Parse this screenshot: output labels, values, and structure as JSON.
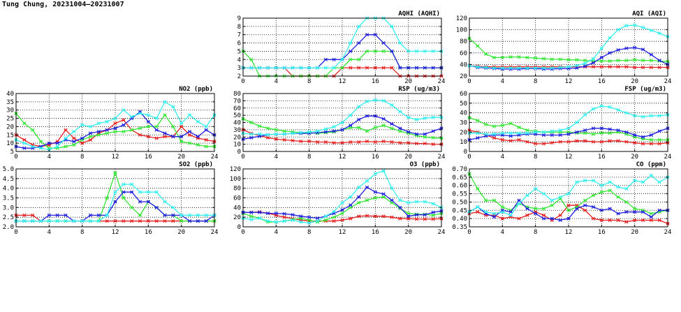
{
  "title": "Tung Chung, 20231004–20231007",
  "colors": {
    "red": "#e81f1f",
    "green": "#33e633",
    "blue": "#1f1fe0",
    "cyan": "#33f0f0",
    "grid": "#000000"
  },
  "xticks": [
    "0",
    "4",
    "8",
    "12",
    "16",
    "20",
    "24"
  ],
  "chart_data": [
    {
      "id": "aqhi",
      "type": "line",
      "title": "AQHI (AQHI)",
      "xlim": [
        0,
        24
      ],
      "ylim": [
        2,
        9
      ],
      "yticks": [
        "2",
        "3",
        "4",
        "5",
        "6",
        "7",
        "8",
        "9"
      ],
      "series": [
        {
          "color": "red",
          "values": [
            3,
            3,
            3,
            3,
            3,
            3,
            2,
            2,
            2,
            2,
            2,
            2,
            3,
            3,
            3,
            3,
            3,
            3,
            3,
            2,
            2,
            2,
            2,
            2,
            2
          ]
        },
        {
          "color": "green",
          "values": [
            5,
            4,
            2,
            2,
            2,
            2,
            2,
            2,
            2,
            2,
            2,
            3,
            3,
            4,
            4,
            5,
            5,
            5,
            5,
            3,
            3,
            3,
            3,
            3,
            3
          ]
        },
        {
          "color": "blue",
          "values": [
            3,
            3,
            3,
            3,
            3,
            3,
            3,
            3,
            3,
            3,
            4,
            4,
            4,
            5,
            6,
            7,
            7,
            6,
            5,
            3,
            3,
            3,
            3,
            3,
            3
          ]
        },
        {
          "color": "cyan",
          "values": [
            3,
            3,
            3,
            3,
            3,
            3,
            3,
            3,
            3,
            3,
            3,
            3,
            4,
            6,
            8,
            9,
            9,
            9,
            8,
            6,
            5,
            5,
            5,
            5,
            5
          ]
        }
      ]
    },
    {
      "id": "aqi",
      "type": "line",
      "title": "AQI (AQI)",
      "xlim": [
        0,
        24
      ],
      "ylim": [
        20,
        120
      ],
      "yticks": [
        "20",
        "40",
        "60",
        "80",
        "100",
        "120"
      ],
      "series": [
        {
          "color": "red",
          "values": [
            38,
            37,
            36,
            36,
            36,
            36,
            36,
            36,
            36,
            36,
            36,
            36,
            36,
            36,
            36,
            36,
            36,
            36,
            36,
            36,
            35,
            35,
            35,
            35,
            35
          ]
        },
        {
          "color": "green",
          "values": [
            85,
            72,
            58,
            52,
            52,
            53,
            53,
            52,
            51,
            50,
            49,
            49,
            48,
            48,
            47,
            46,
            46,
            46,
            47,
            47,
            48,
            47,
            47,
            46,
            45
          ]
        },
        {
          "color": "blue",
          "values": [
            38,
            35,
            34,
            33,
            32,
            32,
            32,
            33,
            33,
            32,
            32,
            33,
            33,
            34,
            37,
            43,
            52,
            60,
            65,
            68,
            69,
            66,
            57,
            47,
            40
          ]
        },
        {
          "color": "cyan",
          "values": [
            38,
            36,
            35,
            34,
            34,
            34,
            34,
            34,
            34,
            34,
            34,
            35,
            36,
            38,
            42,
            50,
            68,
            86,
            100,
            107,
            108,
            104,
            99,
            94,
            88
          ]
        }
      ]
    },
    {
      "id": "no2",
      "type": "line",
      "title": "NO2 (ppb)",
      "xlim": [
        0,
        24
      ],
      "ylim": [
        5,
        40
      ],
      "yticks": [
        "5",
        "10",
        "15",
        "20",
        "25",
        "30",
        "35",
        "40"
      ],
      "series": [
        {
          "color": "red",
          "values": [
            15,
            12,
            9,
            8,
            9,
            11,
            18,
            13,
            10,
            12,
            16,
            18,
            22,
            24,
            18,
            15,
            14,
            13,
            14,
            14,
            20,
            15,
            13,
            12,
            11
          ]
        },
        {
          "color": "green",
          "values": [
            28,
            22,
            18,
            11,
            7,
            7,
            8,
            9,
            12,
            14,
            15,
            16,
            17,
            17,
            18,
            19,
            20,
            20,
            27,
            20,
            11,
            10,
            9,
            8,
            8
          ]
        },
        {
          "color": "blue",
          "values": [
            8,
            7,
            7,
            8,
            10,
            10,
            12,
            11,
            13,
            16,
            17,
            18,
            19,
            21,
            25,
            29,
            23,
            18,
            16,
            14,
            14,
            17,
            14,
            18,
            15
          ]
        },
        {
          "color": "cyan",
          "values": [
            12,
            10,
            8,
            7,
            6,
            8,
            13,
            17,
            21,
            20,
            22,
            23,
            25,
            30,
            26,
            28,
            27,
            25,
            35,
            32,
            22,
            27,
            23,
            20,
            27
          ]
        }
      ]
    },
    {
      "id": "rsp",
      "type": "line",
      "title": "RSP (ug/m3)",
      "xlim": [
        0,
        24
      ],
      "ylim": [
        0,
        80
      ],
      "yticks": [
        "0",
        "10",
        "20",
        "30",
        "40",
        "50",
        "60",
        "70",
        "80"
      ],
      "series": [
        {
          "color": "red",
          "values": [
            30,
            25,
            22,
            19,
            17,
            16,
            15,
            14,
            14,
            13,
            13,
            12,
            12,
            13,
            13,
            14,
            13,
            14,
            13,
            12,
            12,
            11,
            11,
            10,
            10
          ]
        },
        {
          "color": "green",
          "values": [
            45,
            40,
            35,
            32,
            30,
            28,
            27,
            26,
            26,
            25,
            26,
            27,
            30,
            33,
            33,
            28,
            33,
            36,
            32,
            28,
            25,
            22,
            20,
            19,
            18
          ]
        },
        {
          "color": "blue",
          "values": [
            17,
            19,
            21,
            23,
            24,
            24,
            25,
            25,
            25,
            26,
            27,
            28,
            30,
            36,
            44,
            49,
            49,
            45,
            38,
            32,
            27,
            24,
            24,
            28,
            32
          ]
        },
        {
          "color": "cyan",
          "values": [
            25,
            24,
            24,
            23,
            24,
            24,
            25,
            26,
            27,
            28,
            31,
            34,
            40,
            50,
            62,
            69,
            71,
            70,
            64,
            55,
            47,
            44,
            46,
            47,
            47
          ]
        }
      ]
    },
    {
      "id": "fsp",
      "type": "line",
      "title": "FSP (ug/m3)",
      "xlim": [
        0,
        24
      ],
      "ylim": [
        0,
        60
      ],
      "yticks": [
        "0",
        "10",
        "20",
        "30",
        "40",
        "50",
        "60"
      ],
      "series": [
        {
          "color": "red",
          "values": [
            22,
            20,
            17,
            14,
            12,
            11,
            12,
            10,
            8,
            8,
            9,
            10,
            10,
            11,
            11,
            10,
            10,
            11,
            11,
            10,
            9,
            8,
            8,
            8,
            9
          ]
        },
        {
          "color": "green",
          "values": [
            35,
            32,
            28,
            26,
            27,
            29,
            25,
            22,
            21,
            20,
            20,
            20,
            20,
            19,
            19,
            18,
            19,
            19,
            20,
            18,
            15,
            13,
            12,
            12,
            12
          ]
        },
        {
          "color": "blue",
          "values": [
            12,
            14,
            16,
            17,
            17,
            16,
            17,
            18,
            18,
            17,
            17,
            17,
            18,
            20,
            22,
            24,
            24,
            23,
            22,
            20,
            17,
            15,
            17,
            21,
            24
          ]
        },
        {
          "color": "cyan",
          "values": [
            19,
            19,
            18,
            18,
            19,
            19,
            19,
            19,
            20,
            20,
            21,
            22,
            24,
            30,
            38,
            44,
            47,
            46,
            43,
            40,
            37,
            36,
            37,
            37,
            38
          ]
        }
      ]
    },
    {
      "id": "so2",
      "type": "line",
      "title": "SO2 (ppb)",
      "xlim": [
        0,
        24
      ],
      "ylim": [
        2,
        5
      ],
      "yticks": [
        "2.0",
        "2.5",
        "3.0",
        "3.5",
        "4.0",
        "4.5",
        "5.0"
      ],
      "series": [
        {
          "color": "red",
          "values": [
            2.6,
            2.6,
            2.6,
            2.3,
            2.3,
            2.3,
            2.3,
            2.3,
            2.3,
            2.3,
            2.3,
            2.3,
            2.3,
            2.3,
            2.3,
            2.3,
            2.3,
            2.3,
            2.3,
            2.3,
            2.3,
            2.3,
            2.3,
            2.3,
            2.3
          ]
        },
        {
          "color": "green",
          "values": [
            2.3,
            2.3,
            2.3,
            2.3,
            2.3,
            2.3,
            2.3,
            2.3,
            2.3,
            2.3,
            2.3,
            3.5,
            4.8,
            3.5,
            3.0,
            2.6,
            3.3,
            3.0,
            2.6,
            2.6,
            2.3,
            2.3,
            2.3,
            2.3,
            2.3
          ]
        },
        {
          "color": "blue",
          "values": [
            2.3,
            2.3,
            2.3,
            2.3,
            2.6,
            2.6,
            2.6,
            2.3,
            2.3,
            2.6,
            2.6,
            2.6,
            3.3,
            3.8,
            3.8,
            3.3,
            3.3,
            3.0,
            2.6,
            2.6,
            2.6,
            2.3,
            2.3,
            2.3,
            2.6
          ]
        },
        {
          "color": "cyan",
          "values": [
            2.3,
            2.3,
            2.3,
            2.3,
            2.3,
            2.3,
            2.3,
            2.3,
            2.3,
            2.3,
            2.3,
            2.6,
            3.8,
            4.2,
            4.2,
            3.8,
            3.8,
            3.8,
            3.3,
            3.0,
            2.6,
            2.6,
            2.6,
            2.6,
            2.6
          ]
        }
      ]
    },
    {
      "id": "o3",
      "type": "line",
      "title": "O3 (ppb)",
      "xlim": [
        0,
        24
      ],
      "ylim": [
        0,
        120
      ],
      "yticks": [
        "0",
        "20",
        "40",
        "60",
        "80",
        "100",
        "120"
      ],
      "series": [
        {
          "color": "red",
          "values": [
            30,
            30,
            31,
            28,
            24,
            20,
            17,
            14,
            12,
            12,
            12,
            12,
            14,
            17,
            22,
            23,
            22,
            22,
            20,
            17,
            17,
            16,
            16,
            16,
            17
          ]
        },
        {
          "color": "green",
          "values": [
            28,
            22,
            18,
            10,
            10,
            12,
            15,
            18,
            14,
            10,
            14,
            20,
            28,
            40,
            50,
            55,
            60,
            62,
            50,
            38,
            28,
            26,
            26,
            24,
            28
          ]
        },
        {
          "color": "blue",
          "values": [
            30,
            30,
            30,
            28,
            28,
            27,
            25,
            22,
            20,
            18,
            22,
            28,
            35,
            45,
            62,
            82,
            72,
            68,
            55,
            40,
            22,
            25,
            25,
            30,
            33
          ]
        },
        {
          "color": "cyan",
          "values": [
            18,
            15,
            18,
            12,
            10,
            12,
            14,
            10,
            8,
            12,
            22,
            32,
            50,
            62,
            82,
            95,
            110,
            116,
            80,
            55,
            50,
            52,
            52,
            48,
            40
          ]
        }
      ]
    },
    {
      "id": "co",
      "type": "line",
      "title": "CO (ppm)",
      "xlim": [
        0,
        24
      ],
      "ylim": [
        0.35,
        0.7
      ],
      "yticks": [
        "0.35",
        "0.40",
        "0.45",
        "0.50",
        "0.55",
        "0.60",
        "0.65",
        "0.70"
      ],
      "series": [
        {
          "color": "red",
          "values": [
            0.43,
            0.44,
            0.42,
            0.42,
            0.4,
            0.41,
            0.4,
            0.42,
            0.44,
            0.42,
            0.39,
            0.42,
            0.48,
            0.48,
            0.45,
            0.4,
            0.39,
            0.39,
            0.39,
            0.38,
            0.39,
            0.39,
            0.39,
            0.39,
            0.37
          ]
        },
        {
          "color": "green",
          "values": [
            0.67,
            0.58,
            0.51,
            0.51,
            0.47,
            0.45,
            0.49,
            0.47,
            0.46,
            0.46,
            0.48,
            0.52,
            0.45,
            0.47,
            0.51,
            0.54,
            0.56,
            0.57,
            0.53,
            0.5,
            0.46,
            0.45,
            0.43,
            0.44,
            0.45
          ]
        },
        {
          "color": "blue",
          "values": [
            0.44,
            0.47,
            0.43,
            0.41,
            0.45,
            0.44,
            0.51,
            0.46,
            0.43,
            0.4,
            0.4,
            0.39,
            0.4,
            0.46,
            0.48,
            0.47,
            0.45,
            0.46,
            0.43,
            0.44,
            0.44,
            0.44,
            0.41,
            0.45,
            0.45
          ]
        },
        {
          "color": "cyan",
          "values": [
            0.44,
            0.47,
            0.44,
            0.43,
            0.44,
            0.42,
            0.49,
            0.54,
            0.58,
            0.55,
            0.51,
            0.53,
            0.55,
            0.62,
            0.63,
            0.63,
            0.6,
            0.62,
            0.59,
            0.58,
            0.63,
            0.62,
            0.66,
            0.62,
            0.65
          ]
        }
      ]
    }
  ]
}
